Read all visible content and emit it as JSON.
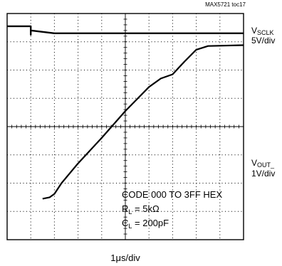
{
  "figure_id": "MAX5721 toc17",
  "channels": [
    {
      "name_main": "V",
      "name_sub": "SCLK",
      "scale": "5V/div"
    },
    {
      "name_main": "V",
      "name_sub": "OUT_",
      "scale": "1V/div"
    }
  ],
  "annotations": {
    "code": "CODE 000 TO 3FF HEX",
    "rl_main": "R",
    "rl_sub": "L",
    "rl_value": " = 5kΩ",
    "cl_main": "C",
    "cl_sub": "L",
    "cl_value": " = 200pF"
  },
  "timebase": "1μs/div",
  "chart_data": {
    "type": "line",
    "grid": true,
    "xlim": [
      0,
      10
    ],
    "ylim": [
      0,
      8
    ],
    "x_unit": "μs",
    "series": [
      {
        "name": "VSCLK",
        "points": [
          [
            0,
            7.55
          ],
          [
            1.0,
            7.55
          ],
          [
            1.0,
            7.25
          ],
          [
            1.0,
            7.4
          ],
          [
            2.0,
            7.3
          ],
          [
            10,
            7.3
          ]
        ]
      },
      {
        "name": "VOUT_",
        "points": [
          [
            1.5,
            1.45
          ],
          [
            1.8,
            1.5
          ],
          [
            2.0,
            1.62
          ],
          [
            2.3,
            2.0
          ],
          [
            3.0,
            2.7
          ],
          [
            4.0,
            3.6
          ],
          [
            5.0,
            4.55
          ],
          [
            6.0,
            5.4
          ],
          [
            6.5,
            5.7
          ],
          [
            7.0,
            5.85
          ],
          [
            7.5,
            6.3
          ],
          [
            8.0,
            6.72
          ],
          [
            8.5,
            6.85
          ],
          [
            10,
            6.88
          ]
        ]
      }
    ]
  }
}
